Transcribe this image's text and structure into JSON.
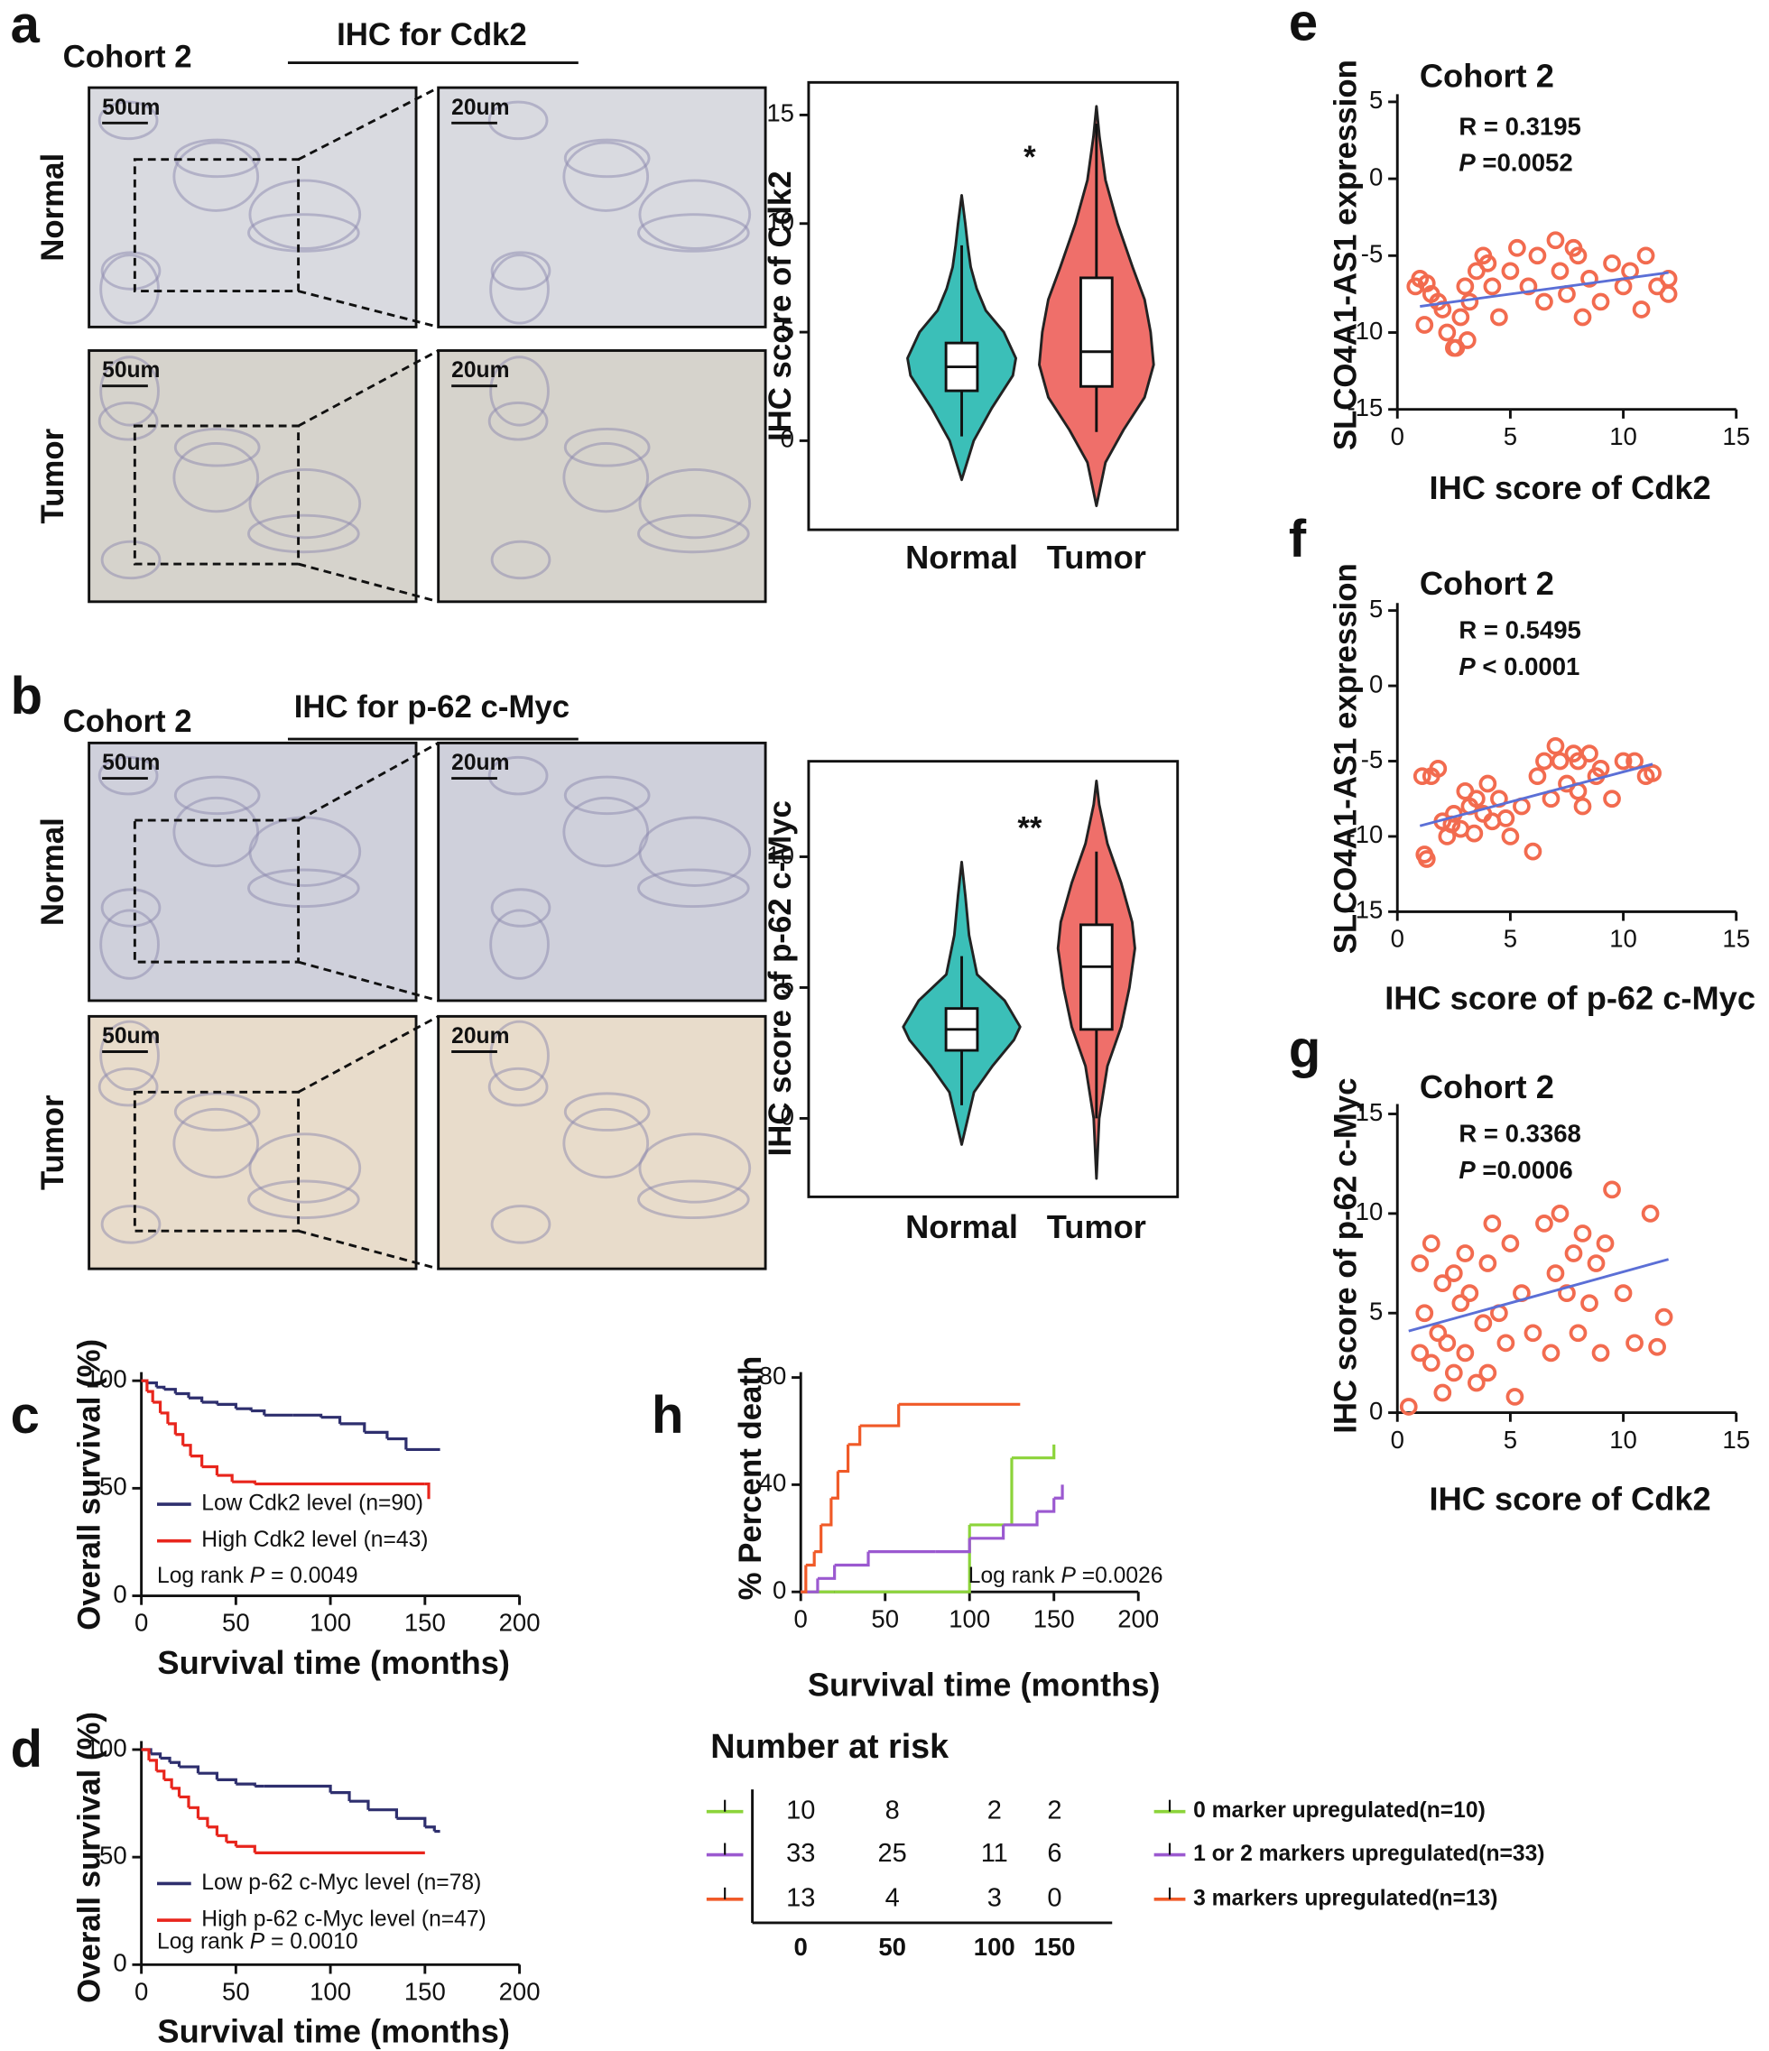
{
  "image_panels": [
    {
      "label": "a",
      "cohort": "Cohort 2",
      "title": "IHC for Cdk2",
      "rows": [
        "Normal",
        "Tumor"
      ],
      "scales": [
        "50um",
        "20um"
      ]
    },
    {
      "label": "b",
      "cohort": "Cohort 2",
      "title": "IHC for  p-62 c-Myc",
      "rows": [
        "Normal",
        "Tumor"
      ],
      "scales": [
        "50um",
        "20um"
      ]
    }
  ],
  "chart_data": [
    {
      "type": "violin",
      "ylabel": "IHC score of Cdk2",
      "annotation": "*",
      "categories": [
        "Normal",
        "Tumor"
      ],
      "ylim": [
        -4.1,
        16.5
      ],
      "yticks": [
        0,
        5,
        10,
        15
      ],
      "series": [
        {
          "color": "#3bbfb8",
          "min": 0.2,
          "q1": 2.3,
          "median": 3.4,
          "q3": 4.5,
          "max": 9,
          "violin_y": [
            -1.8,
            0,
            1.5,
            3,
            3.8,
            5,
            6,
            7,
            8,
            9,
            10,
            11.3
          ],
          "violin_width": [
            0,
            0.2,
            0.5,
            0.85,
            0.9,
            0.7,
            0.4,
            0.25,
            0.15,
            0.1,
            0.06,
            0
          ]
        },
        {
          "color": "#ef6f6a",
          "min": 0.4,
          "q1": 2.5,
          "median": 4.1,
          "q3": 7.5,
          "max": 14.6,
          "violin_y": [
            -3,
            -1,
            0.5,
            2,
            3.5,
            5,
            6.5,
            8,
            10,
            12,
            14,
            15.4
          ],
          "violin_width": [
            0,
            0.15,
            0.45,
            0.8,
            0.95,
            0.9,
            0.8,
            0.6,
            0.35,
            0.15,
            0.05,
            0
          ]
        }
      ]
    },
    {
      "type": "violin",
      "ylabel": "IHC score of  p-62 c-Myc",
      "annotation": "**",
      "categories": [
        "Normal",
        "Tumor"
      ],
      "ylim": [
        -3,
        13.65
      ],
      "yticks": [
        0,
        5,
        10
      ],
      "series": [
        {
          "color": "#3bbfb8",
          "min": 0.5,
          "q1": 2.6,
          "median": 3.4,
          "q3": 4.2,
          "max": 6.2,
          "violin_y": [
            -1,
            0,
            1,
            2,
            3,
            3.5,
            4.5,
            5.5,
            7,
            8.5,
            9.8
          ],
          "violin_width": [
            0,
            0.1,
            0.2,
            0.5,
            0.85,
            0.95,
            0.7,
            0.25,
            0.12,
            0.06,
            0
          ]
        },
        {
          "color": "#ef6f6a",
          "min": 0,
          "q1": 3.4,
          "median": 5.8,
          "q3": 7.4,
          "max": 10.2,
          "violin_y": [
            -2.3,
            0,
            2,
            3.5,
            5,
            6.5,
            7.5,
            9,
            10.5,
            12,
            12.9
          ],
          "violin_width": [
            0,
            0.05,
            0.2,
            0.45,
            0.6,
            0.7,
            0.65,
            0.45,
            0.2,
            0.05,
            0
          ]
        }
      ]
    },
    {
      "type": "scatter",
      "label": "e",
      "title": "Cohort 2",
      "r_text": "R = 0.3195",
      "p_label": "P",
      "p_text": " =0.0052",
      "xlabel": "IHC score of Cdk2",
      "ylabel": "SLCO4A1-AS1 expression",
      "xlim": [
        0,
        15
      ],
      "xticks": [
        0,
        5,
        10,
        15
      ],
      "ylim": [
        -15,
        5.5
      ],
      "yticks": [
        -15,
        -10,
        -5,
        0,
        5
      ],
      "color": "#f26b4f",
      "trend_color": "#5b6fd6",
      "x": [
        0.8,
        1,
        1.2,
        1.5,
        1.8,
        2,
        2.2,
        2.5,
        2.8,
        3,
        3.2,
        3.5,
        3.8,
        4,
        4.2,
        4.5,
        5,
        5.3,
        5.8,
        6.2,
        6.5,
        7,
        7.2,
        7.5,
        7.8,
        8,
        8.2,
        8.5,
        9,
        9.5,
        10,
        10.3,
        10.8,
        11,
        11.5,
        12,
        12,
        2.6,
        3.1,
        1.3
      ],
      "values": [
        -7,
        -6.5,
        -9.5,
        -7.5,
        -8,
        -8.5,
        -10,
        -11,
        -9,
        -7,
        -8,
        -6,
        -5,
        -5.5,
        -7,
        -9,
        -6,
        -4.5,
        -7,
        -5,
        -8,
        -4,
        -6,
        -7.5,
        -4.5,
        -5,
        -9,
        -6.5,
        -8,
        -5.5,
        -7,
        -6,
        -8.5,
        -5,
        -7,
        -6.5,
        -7.5,
        -11,
        -10.5,
        -6.8
      ],
      "trend_line": {
        "x": [
          1,
          12
        ],
        "values": [
          -8.3,
          -6.1
        ]
      }
    },
    {
      "type": "scatter",
      "label": "f",
      "title": "Cohort 2",
      "r_text": "R = 0.5495",
      "p_label": "P",
      "p_text": " < 0.0001",
      "xlabel": "IHC score of p-62 c-Myc",
      "ylabel": "SLCO4A1-AS1 expression",
      "xlim": [
        0,
        15
      ],
      "xticks": [
        0,
        5,
        10,
        15
      ],
      "ylim": [
        -15,
        5.5
      ],
      "yticks": [
        -15,
        -10,
        -5,
        0,
        5
      ],
      "color": "#f26b4f",
      "trend_color": "#5b6fd6",
      "x": [
        1.2,
        1.3,
        1.5,
        1.8,
        2,
        2.2,
        2.5,
        2.8,
        3,
        3.2,
        3.5,
        3.8,
        4,
        4.2,
        4.5,
        5,
        5.5,
        6,
        6.2,
        6.5,
        6.8,
        7,
        7.2,
        7.5,
        7.8,
        8,
        8,
        8.2,
        8.5,
        8.8,
        9,
        9.5,
        10,
        10.5,
        11,
        11.3,
        1.1,
        2.4,
        3.4,
        4.8
      ],
      "values": [
        -11.2,
        -11.5,
        -6,
        -5.5,
        -9,
        -10,
        -8.5,
        -9.5,
        -7,
        -8,
        -7.5,
        -8.5,
        -6.5,
        -9,
        -7.5,
        -10,
        -8,
        -11,
        -6,
        -5,
        -7.5,
        -4,
        -5,
        -6.5,
        -4.5,
        -5,
        -7,
        -8,
        -4.5,
        -6,
        -5.5,
        -7.5,
        -5,
        -5,
        -6,
        -5.8,
        -6,
        -9.2,
        -9.8,
        -8.8
      ],
      "trend_line": {
        "x": [
          1,
          11.3
        ],
        "values": [
          -9.3,
          -5.2
        ]
      }
    },
    {
      "type": "scatter",
      "label": "g",
      "title": "Cohort 2",
      "r_text": "R = 0.3368",
      "p_label": "P",
      "p_text": " =0.0006",
      "xlabel": "IHC score of Cdk2",
      "ylabel": "IHC score of  p-62 c-Myc",
      "xlim": [
        0,
        15
      ],
      "xticks": [
        0,
        5,
        10,
        15
      ],
      "ylim": [
        0,
        15.5
      ],
      "yticks": [
        0,
        5,
        10,
        15
      ],
      "color": "#f26b4f",
      "trend_color": "#5b6fd6",
      "x": [
        0.5,
        1,
        1,
        1.2,
        1.5,
        1.5,
        1.8,
        2,
        2,
        2.2,
        2.5,
        2.5,
        2.8,
        3,
        3,
        3.2,
        3.5,
        3.8,
        4,
        4,
        4.2,
        4.5,
        4.8,
        5,
        5.2,
        5.5,
        6,
        6.5,
        6.8,
        7,
        7.2,
        7.5,
        7.8,
        8,
        8.2,
        8.5,
        8.8,
        9,
        9.2,
        9.5,
        10,
        10.5,
        11.2,
        11.5,
        11.8
      ],
      "values": [
        0.3,
        7.5,
        3,
        5,
        2.5,
        8.5,
        4,
        6.5,
        1,
        3.5,
        7,
        2,
        5.5,
        3,
        8,
        6,
        1.5,
        4.5,
        7.5,
        2,
        9.5,
        5,
        3.5,
        8.5,
        0.8,
        6,
        4,
        9.5,
        3,
        7,
        10,
        6,
        8,
        4,
        9,
        5.5,
        7.5,
        3,
        8.5,
        11.2,
        6,
        3.5,
        10,
        3.3,
        4.8
      ],
      "trend_line": {
        "x": [
          0.5,
          12
        ],
        "values": [
          4.1,
          7.7
        ]
      }
    },
    {
      "type": "km",
      "label": "c",
      "xlabel": "Survival time (months)",
      "ylabel": "Overall survival (%)",
      "xlim": [
        0,
        200
      ],
      "xticks": [
        0,
        50,
        100,
        150,
        200
      ],
      "ylim": [
        0,
        104
      ],
      "yticks": [
        0,
        50,
        100
      ],
      "logrank": [
        "Log rank ",
        "P",
        " = 0.0049"
      ],
      "series": [
        {
          "name": "Low Cdk2 level (n=90)",
          "color": "#2e2f6e",
          "x": [
            0,
            3,
            8,
            12,
            18,
            25,
            32,
            40,
            50,
            58,
            65,
            80,
            95,
            105,
            118,
            130,
            140,
            158
          ],
          "values": [
            100,
            99,
            97,
            96,
            94,
            92,
            90,
            89,
            87,
            86,
            84,
            84,
            83,
            80,
            76,
            73,
            68,
            68
          ]
        },
        {
          "name": "High Cdk2 level (n=43)",
          "color": "#e8251c",
          "x": [
            0,
            3,
            6,
            10,
            14,
            18,
            22,
            26,
            32,
            40,
            48,
            60,
            150,
            152
          ],
          "values": [
            100,
            95,
            90,
            85,
            80,
            75,
            70,
            65,
            60,
            56,
            53,
            52,
            52,
            45
          ]
        }
      ]
    },
    {
      "type": "km",
      "label": "d",
      "xlabel": "Survival time (months)",
      "ylabel": "Overall survival (%)",
      "xlim": [
        0,
        200
      ],
      "xticks": [
        0,
        50,
        100,
        150,
        200
      ],
      "ylim": [
        0,
        104
      ],
      "yticks": [
        0,
        50,
        100
      ],
      "logrank": [
        "Log rank ",
        "P",
        " = 0.0010"
      ],
      "series": [
        {
          "name": "Low  p-62 c-Myc level (n=78)",
          "color": "#2e2f6e",
          "x": [
            0,
            5,
            10,
            15,
            20,
            30,
            40,
            50,
            60,
            65,
            100,
            110,
            120,
            135,
            150,
            155,
            158
          ],
          "values": [
            100,
            98,
            96,
            94,
            92,
            89,
            86,
            84,
            83,
            83,
            80,
            76,
            72,
            68,
            64,
            62,
            62
          ]
        },
        {
          "name": "High  p-62 c-Myc level (n=47)",
          "color": "#e8251c",
          "x": [
            0,
            4,
            8,
            12,
            16,
            20,
            25,
            30,
            35,
            40,
            45,
            50,
            60,
            150
          ],
          "values": [
            100,
            95,
            90,
            86,
            82,
            78,
            73,
            68,
            64,
            60,
            57,
            55,
            52,
            52
          ]
        }
      ]
    },
    {
      "type": "km",
      "label": "h",
      "xlabel": "Survival time (months)",
      "ylabel": "% Percent death",
      "xlim": [
        0,
        200
      ],
      "xticks": [
        0,
        50,
        100,
        150,
        200
      ],
      "ylim": [
        0,
        82
      ],
      "yticks": [
        0,
        40,
        80
      ],
      "logrank": [
        "Log rank ",
        "P",
        " =0.0026"
      ],
      "series": [
        {
          "name": "0 marker upregulated(n=10)",
          "color": "#8cd43a",
          "x": [
            0,
            20,
            98,
            100,
            125,
            150
          ],
          "values": [
            0,
            0,
            0,
            25,
            50,
            55
          ]
        },
        {
          "name": "1 or 2 markers upregulated(n=33)",
          "color": "#9b59d0",
          "x": [
            0,
            10,
            20,
            40,
            80,
            100,
            120,
            140,
            150,
            155
          ],
          "values": [
            0,
            5,
            10,
            15,
            15,
            20,
            25,
            30,
            35,
            40
          ]
        },
        {
          "name": "3 markers upregulated(n=13)",
          "color": "#f05a28",
          "x": [
            0,
            3,
            8,
            12,
            18,
            22,
            28,
            35,
            58,
            130
          ],
          "values": [
            0,
            10,
            15,
            25,
            35,
            45,
            55,
            62,
            70,
            70
          ]
        }
      ],
      "risk_table": {
        "title": "Number at risk",
        "times": [
          0,
          50,
          100,
          150
        ],
        "rows": [
          [
            10,
            8,
            2,
            2
          ],
          [
            33,
            25,
            11,
            6
          ],
          [
            13,
            4,
            3,
            0
          ]
        ]
      }
    }
  ]
}
